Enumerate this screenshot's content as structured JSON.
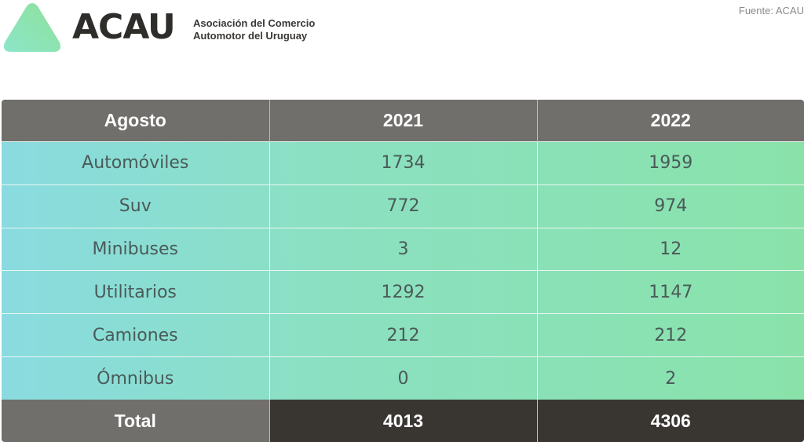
{
  "header": {
    "logo_text": "ACAU",
    "org_name_line1": "Asociación del Comercio",
    "org_name_line2": "Automotor del Uruguay",
    "source": "Fuente: ACAU",
    "logo_icon": "green-triangle-logo"
  },
  "colors": {
    "header_bg": "#716f6c",
    "total_bg": "#393632",
    "gradient_left": "#8adbe0",
    "gradient_right": "#8ae2aa"
  },
  "chart_data": {
    "type": "table",
    "columns": [
      "Agosto",
      "2021",
      "2022"
    ],
    "rows": [
      {
        "label": "Automóviles",
        "values": [
          "1734",
          "1959"
        ]
      },
      {
        "label": "Suv",
        "values": [
          "772",
          "974"
        ]
      },
      {
        "label": "Minibuses",
        "values": [
          "3",
          "12"
        ]
      },
      {
        "label": "Utilitarios",
        "values": [
          "1292",
          "1147"
        ]
      },
      {
        "label": "Camiones",
        "values": [
          "212",
          "212"
        ]
      },
      {
        "label": "Ómnibus",
        "values": [
          "0",
          "2"
        ]
      }
    ],
    "total": {
      "label": "Total",
      "values": [
        "4013",
        "4306"
      ]
    }
  }
}
